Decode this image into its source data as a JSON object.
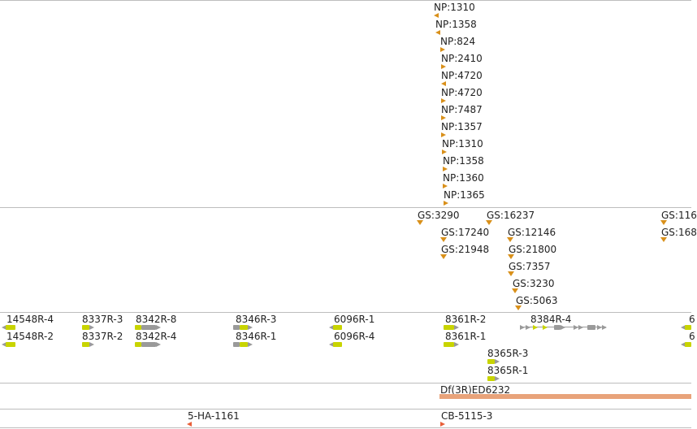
{
  "colors": {
    "insertion_marker": "#d9901a",
    "insertion_marker_red": "#e8603a",
    "gene_green": "#c8d400",
    "gene_gray": "#9a9a9a",
    "deficiency_bar": "#e8a37a",
    "divider": "#bdbdbd"
  },
  "np_track": {
    "items": [
      {
        "label": "NP:1310",
        "marker": "triangle-left"
      },
      {
        "label": "NP:1358",
        "marker": "triangle-left"
      },
      {
        "label": "NP:824",
        "marker": "triangle-right"
      },
      {
        "label": "NP:2410",
        "marker": "triangle-right"
      },
      {
        "label": "NP:4720",
        "marker": "triangle-left"
      },
      {
        "label": "NP:4720",
        "marker": "triangle-right"
      },
      {
        "label": "NP:7487",
        "marker": "triangle-right"
      },
      {
        "label": "NP:1357",
        "marker": "triangle-right"
      },
      {
        "label": "NP:1310",
        "marker": "triangle-right"
      },
      {
        "label": "NP:1358",
        "marker": "triangle-right"
      },
      {
        "label": "NP:1360",
        "marker": "triangle-right"
      },
      {
        "label": "NP:1365",
        "marker": "triangle-right"
      }
    ]
  },
  "gs_track": {
    "items": [
      {
        "label": "GS:3290"
      },
      {
        "label": "GS:16237"
      },
      {
        "label": "GS:17240"
      },
      {
        "label": "GS:12146"
      },
      {
        "label": "GS:21948"
      },
      {
        "label": "GS:21800"
      },
      {
        "label": "GS:7357"
      },
      {
        "label": "GS:3230"
      },
      {
        "label": "GS:5063"
      },
      {
        "label": "GS:116"
      },
      {
        "label": "GS:168"
      }
    ]
  },
  "gene_track": {
    "items": [
      {
        "label": "14548R-4"
      },
      {
        "label": "14548R-2"
      },
      {
        "label": "8337R-3"
      },
      {
        "label": "8337R-2"
      },
      {
        "label": "8342R-8"
      },
      {
        "label": "8342R-4"
      },
      {
        "label": "8346R-3"
      },
      {
        "label": "8346R-1"
      },
      {
        "label": "6096R-1"
      },
      {
        "label": "6096R-4"
      },
      {
        "label": "8361R-2"
      },
      {
        "label": "8361R-1"
      },
      {
        "label": "8384R-4"
      },
      {
        "label": "8365R-3"
      },
      {
        "label": "8365R-1"
      },
      {
        "label": "6"
      },
      {
        "label": "6"
      }
    ]
  },
  "deficiency_track": {
    "label": "Df(3R)ED6232"
  },
  "bottom_track": {
    "items": [
      {
        "label": "5-HA-1161"
      },
      {
        "label": "CB-5115-3"
      }
    ]
  }
}
